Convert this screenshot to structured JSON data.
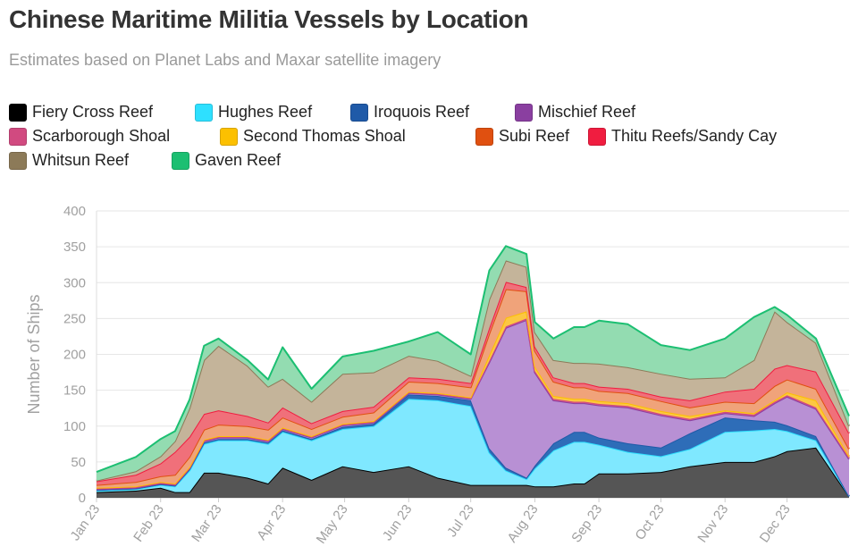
{
  "chart_data": {
    "type": "area",
    "title": "Chinese Maritime Militia Vessels by Location",
    "subtitle": "Estimates based on Planet Labs and Maxar satellite imagery",
    "ylabel": "Number of Ships",
    "xlabel": "",
    "ylim": [
      0,
      400
    ],
    "yticks": [
      0,
      50,
      100,
      150,
      200,
      250,
      300,
      350,
      400
    ],
    "grid": true,
    "legend_position": "top",
    "stacked": true,
    "xticks": [
      "Jan 23",
      "Feb 23",
      "Mar 23",
      "Apr 23",
      "May 23",
      "Jun 23",
      "Jul 23",
      "Aug 23",
      "Sep 23",
      "Oct 23",
      "Nov 23",
      "Dec 23"
    ],
    "x": [
      "2023-01-01",
      "2023-01-20",
      "2023-02-01",
      "2023-02-08",
      "2023-02-15",
      "2023-02-22",
      "2023-03-01",
      "2023-03-15",
      "2023-03-25",
      "2023-04-01",
      "2023-04-15",
      "2023-04-30",
      "2023-05-15",
      "2023-06-01",
      "2023-06-15",
      "2023-07-01",
      "2023-07-10",
      "2023-07-18",
      "2023-07-28",
      "2023-08-01",
      "2023-08-10",
      "2023-08-20",
      "2023-08-25",
      "2023-09-01",
      "2023-09-15",
      "2023-10-01",
      "2023-10-15",
      "2023-11-01",
      "2023-11-15",
      "2023-11-25",
      "2023-12-01",
      "2023-12-15",
      "2023-12-31"
    ],
    "series": [
      {
        "name": "Fiery Cross Reef",
        "color": "#555555",
        "values": [
          8,
          10,
          14,
          8,
          8,
          35,
          35,
          28,
          20,
          42,
          25,
          44,
          36,
          44,
          28,
          18,
          18,
          18,
          18,
          16,
          16,
          20,
          20,
          34,
          34,
          36,
          44,
          50,
          50,
          58,
          65,
          70,
          2
        ]
      },
      {
        "name": "Hughes Reef",
        "color": "#7fe8ff",
        "values": [
          2,
          2,
          4,
          8,
          30,
          40,
          45,
          52,
          55,
          50,
          55,
          52,
          64,
          94,
          108,
          110,
          45,
          20,
          8,
          25,
          50,
          58,
          58,
          40,
          30,
          22,
          24,
          42,
          44,
          38,
          28,
          10,
          0
        ]
      },
      {
        "name": "Iroquois Reef",
        "color": "#2e6db8",
        "values": [
          1,
          1,
          1,
          1,
          2,
          2,
          2,
          2,
          2,
          2,
          2,
          3,
          3,
          6,
          6,
          8,
          6,
          4,
          2,
          4,
          10,
          14,
          14,
          10,
          12,
          12,
          22,
          20,
          14,
          10,
          8,
          6,
          0
        ]
      },
      {
        "name": "Mischief Reef",
        "color": "#b890d4",
        "values": [
          1,
          1,
          1,
          1,
          1,
          2,
          2,
          2,
          2,
          2,
          2,
          2,
          2,
          2,
          2,
          2,
          120,
          195,
          220,
          130,
          60,
          40,
          40,
          45,
          50,
          45,
          18,
          6,
          6,
          26,
          40,
          38,
          52
        ]
      },
      {
        "name": "Scarborough Shoal",
        "color": "#d4578a",
        "values": [
          1,
          1,
          1,
          1,
          1,
          1,
          1,
          1,
          1,
          1,
          1,
          1,
          1,
          1,
          1,
          1,
          2,
          2,
          2,
          2,
          2,
          2,
          2,
          2,
          2,
          2,
          2,
          2,
          2,
          2,
          2,
          2,
          2
        ]
      },
      {
        "name": "Second Thomas Shoal",
        "color": "#fcc742",
        "values": [
          1,
          1,
          1,
          1,
          1,
          1,
          1,
          1,
          1,
          1,
          1,
          1,
          1,
          1,
          1,
          1,
          8,
          12,
          10,
          6,
          4,
          4,
          4,
          4,
          4,
          4,
          4,
          2,
          2,
          2,
          4,
          10,
          2
        ]
      },
      {
        "name": "Subi Reef",
        "color": "#f0a37a",
        "values": [
          4,
          6,
          8,
          12,
          14,
          14,
          16,
          14,
          14,
          14,
          10,
          10,
          12,
          14,
          14,
          14,
          30,
          40,
          28,
          22,
          20,
          16,
          16,
          14,
          14,
          14,
          12,
          12,
          14,
          20,
          18,
          16,
          10
        ]
      },
      {
        "name": "Thitu Reefs/Sandy Cay",
        "color": "#f0707a",
        "values": [
          5,
          10,
          18,
          32,
          28,
          22,
          20,
          14,
          10,
          14,
          8,
          8,
          8,
          6,
          6,
          6,
          8,
          10,
          6,
          6,
          6,
          6,
          6,
          6,
          6,
          6,
          10,
          14,
          20,
          24,
          20,
          24,
          22
        ]
      },
      {
        "name": "Whitsun Reef",
        "color": "#c4b49a",
        "values": [
          1,
          5,
          10,
          15,
          40,
          75,
          90,
          70,
          50,
          40,
          30,
          52,
          48,
          30,
          25,
          10,
          40,
          30,
          28,
          20,
          24,
          28,
          28,
          32,
          30,
          32,
          30,
          20,
          40,
          80,
          60,
          40,
          10
        ]
      },
      {
        "name": "Gaven Reef",
        "color": "#93dcb1",
        "values": [
          12,
          20,
          24,
          14,
          12,
          20,
          10,
          8,
          10,
          44,
          18,
          24,
          30,
          20,
          40,
          30,
          40,
          20,
          18,
          14,
          30,
          50,
          50,
          60,
          60,
          40,
          40,
          54,
          60,
          6,
          10,
          6,
          14
        ]
      }
    ]
  },
  "legend_marks": [
    {
      "name": "Fiery Cross Reef",
      "color": "#000000"
    },
    {
      "name": "Hughes Reef",
      "color": "#2ee0ff"
    },
    {
      "name": "Iroquois Reef",
      "color": "#1f5aa8"
    },
    {
      "name": "Mischief Reef",
      "color": "#8a3fa0"
    },
    {
      "name": "Scarborough Shoal",
      "color": "#d14a80"
    },
    {
      "name": "Second Thomas Shoal",
      "color": "#fcc000"
    },
    {
      "name": "Subi Reef",
      "color": "#e05010"
    },
    {
      "name": "Thitu Reefs/Sandy Cay",
      "color": "#f01d40"
    },
    {
      "name": "Whitsun Reef",
      "color": "#8c7a58"
    },
    {
      "name": "Gaven Reef",
      "color": "#1cbf72"
    }
  ]
}
